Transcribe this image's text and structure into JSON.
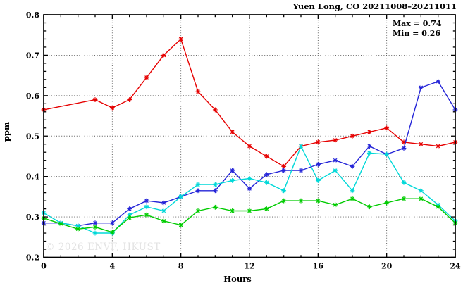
{
  "header": {
    "title": "Yuen Long, CO 20211008–20211011"
  },
  "annotations": {
    "max_label": "Max = 0.74",
    "min_label": "Min = 0.26"
  },
  "watermark": "© 2026 ENVF, HKUST",
  "chart_data": {
    "type": "line",
    "title": "Yuen Long, CO 20211008–20211011",
    "xlabel": "Hours",
    "ylabel": "ppm",
    "xlim": [
      0,
      24
    ],
    "ylim": [
      0.2,
      0.8
    ],
    "grid": true,
    "legend_position": "none",
    "marker": "asterisk",
    "x_major_ticks": [
      0,
      4,
      8,
      12,
      16,
      20,
      24
    ],
    "x_tick_labels": [
      "0",
      "4",
      "8",
      "12",
      "16",
      "20",
      "24"
    ],
    "x_minor_step": 1,
    "y_major_ticks": [
      0.2,
      0.3,
      0.4,
      0.5,
      0.6,
      0.7,
      0.8
    ],
    "y_tick_labels": [
      "0.2",
      "0.3",
      "0.4",
      "0.5",
      "0.6",
      "0.7",
      "0.8"
    ],
    "y_minor_step": 0.02,
    "stats": {
      "max": 0.74,
      "min": 0.26
    },
    "x": [
      0,
      1,
      2,
      3,
      4,
      5,
      6,
      7,
      8,
      9,
      10,
      11,
      12,
      13,
      14,
      15,
      16,
      17,
      18,
      19,
      20,
      21,
      22,
      23,
      24
    ],
    "series": [
      {
        "name": "red-series",
        "color": "#e60000",
        "values": [
          0.565,
          null,
          null,
          0.59,
          0.57,
          0.59,
          0.645,
          0.7,
          0.74,
          0.61,
          0.565,
          0.51,
          0.475,
          0.45,
          0.425,
          0.475,
          0.485,
          0.49,
          0.5,
          0.51,
          0.52,
          0.485,
          0.48,
          0.475,
          0.485
        ]
      },
      {
        "name": "blue-series",
        "color": "#2424d8",
        "values": [
          0.285,
          0.285,
          0.278,
          0.285,
          0.285,
          0.32,
          0.34,
          0.335,
          0.35,
          0.365,
          0.365,
          0.415,
          0.37,
          0.405,
          0.415,
          0.415,
          0.43,
          0.44,
          0.425,
          0.475,
          0.455,
          0.47,
          0.62,
          0.635,
          0.565
        ]
      },
      {
        "name": "cyan-series",
        "color": "#00d8d8",
        "values": [
          0.31,
          0.285,
          0.278,
          0.26,
          0.26,
          0.305,
          0.325,
          0.315,
          0.35,
          0.38,
          0.38,
          0.39,
          0.395,
          0.385,
          0.365,
          0.475,
          0.39,
          0.415,
          0.365,
          0.458,
          0.455,
          0.385,
          0.365,
          0.33,
          0.29
        ]
      },
      {
        "name": "green-series",
        "color": "#00cc00",
        "values": [
          0.297,
          0.283,
          0.27,
          0.275,
          0.262,
          0.298,
          0.305,
          0.29,
          0.28,
          0.315,
          0.324,
          0.315,
          0.315,
          0.32,
          0.34,
          0.34,
          0.34,
          0.33,
          0.345,
          0.325,
          0.335,
          0.345,
          0.345,
          0.325,
          0.285
        ]
      }
    ]
  }
}
